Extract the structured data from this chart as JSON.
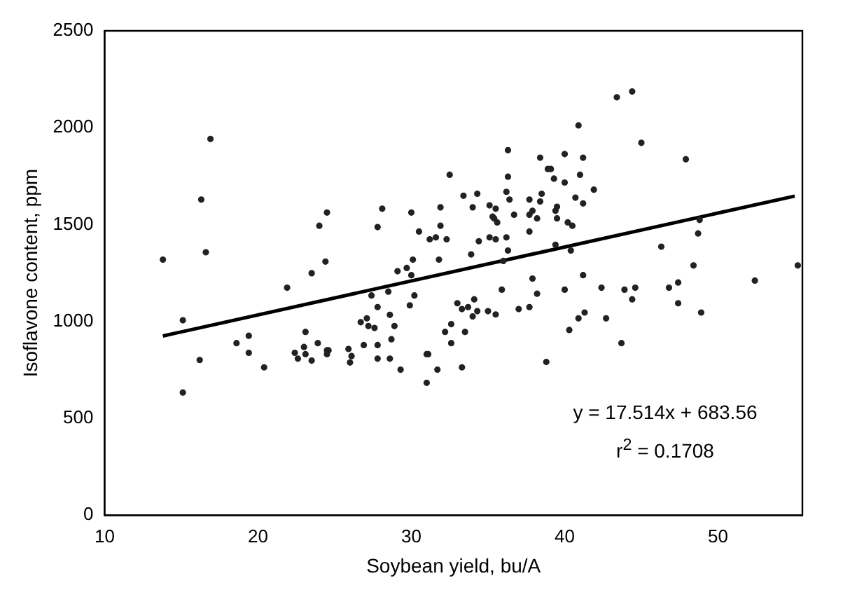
{
  "chart_data": {
    "type": "scatter",
    "xlabel": "Soybean yield, bu/A",
    "ylabel": "Isoflavone content, ppm",
    "xlim": [
      10,
      55.5
    ],
    "xticks": [
      10,
      20,
      30,
      40,
      50
    ],
    "ylim": [
      0,
      2500
    ],
    "yticks": [
      0,
      500,
      1000,
      1500,
      2000,
      2500
    ],
    "grid": false,
    "legend": false,
    "marker": "circle",
    "annotations": [
      "y = 17.514x + 683.56",
      "r$^{2}$ = 0.1708"
    ],
    "series": [
      {
        "type": "scatter",
        "color": "#222222",
        "x": [
          13.8,
          16.9,
          16.3,
          16.6,
          24.0,
          24.5,
          24.4,
          23.5,
          21.9,
          27.8,
          28.1,
          30.0,
          29.1,
          29.7,
          30.1,
          30.0,
          27.4,
          28.5,
          30.2,
          15.1,
          15.1,
          16.2,
          18.6,
          19.4,
          19.4,
          20.4,
          22.4,
          22.6,
          23.0,
          23.1,
          23.1,
          23.5,
          23.9,
          24.5,
          24.6,
          24.5,
          25.9,
          26.1,
          26.0,
          26.7,
          27.1,
          27.2,
          27.6,
          27.8,
          27.8,
          27.8,
          26.9,
          28.6,
          28.9,
          28.7,
          28.6,
          29.3,
          29.9,
          37.9,
          40.0,
          42.4,
          43.9,
          44.6,
          44.4,
          46.8,
          47.4,
          47.4,
          48.9,
          52.4,
          42.7,
          41.3,
          40.9,
          40.3,
          43.7,
          38.8,
          38.2,
          37.7,
          37.0,
          35.9,
          35.5,
          35.0,
          34.1,
          34.3,
          34.0,
          33.7,
          33.3,
          33.0,
          33.5,
          33.3,
          32.6,
          32.6,
          32.2,
          31.7,
          31.0,
          31.1,
          31.0,
          43.4,
          44.4,
          45.0,
          47.9,
          40.9,
          36.3,
          38.4,
          40.0,
          41.2,
          38.9,
          39.1,
          36.3,
          32.5,
          39.3,
          40.0,
          41.0,
          41.9,
          36.2,
          36.4,
          38.5,
          38.4,
          37.7,
          37.7,
          37.9,
          38.2,
          36.7,
          35.5,
          35.3,
          35.4,
          35.6,
          35.1,
          34.3,
          33.4,
          34.0,
          31.9,
          39.5,
          39.4,
          39.5,
          40.2,
          40.5,
          40.7,
          41.2,
          37.7,
          31.9,
          30.5,
          31.2,
          31.6,
          32.3,
          34.4,
          35.1,
          35.5,
          36.2,
          33.9,
          36.3,
          31.8,
          39.4,
          40.4,
          46.3,
          48.7,
          48.8,
          48.4,
          55.2,
          36.0,
          41.2
        ],
        "values": [
          1319,
          1942,
          1629,
          1357,
          1494,
          1562,
          1309,
          1249,
          1174,
          1487,
          1582,
          1562,
          1259,
          1276,
          1319,
          1239,
          1134,
          1154,
          1134,
          1006,
          633,
          801,
          888,
          926,
          838,
          763,
          838,
          808,
          868,
          946,
          831,
          798,
          888,
          851,
          851,
          831,
          858,
          821,
          788,
          996,
          1016,
          976,
          966,
          1074,
          878,
          808,
          878,
          1034,
          976,
          908,
          808,
          751,
          1083,
          1221,
          1164,
          1174,
          1164,
          1174,
          1114,
          1174,
          1201,
          1094,
          1046,
          1211,
          1016,
          1046,
          1016,
          956,
          888,
          791,
          1143,
          1074,
          1064,
          1164,
          1036,
          1053,
          1114,
          1053,
          1026,
          1074,
          1064,
          1094,
          946,
          763,
          986,
          888,
          946,
          751,
          831,
          831,
          683,
          2157,
          2187,
          1922,
          1837,
          2012,
          1884,
          1845,
          1864,
          1845,
          1787,
          1787,
          1747,
          1757,
          1737,
          1717,
          1757,
          1680,
          1669,
          1629,
          1659,
          1619,
          1629,
          1551,
          1571,
          1532,
          1551,
          1582,
          1541,
          1532,
          1511,
          1599,
          1659,
          1649,
          1589,
          1589,
          1592,
          1571,
          1532,
          1511,
          1494,
          1639,
          1609,
          1464,
          1494,
          1464,
          1424,
          1434,
          1424,
          1414,
          1434,
          1424,
          1434,
          1346,
          1366,
          1319,
          1396,
          1366,
          1386,
          1454,
          1524,
          1289,
          1289,
          1312,
          1239
        ]
      },
      {
        "type": "line",
        "color": "#000000",
        "marker": "none",
        "x": [
          13.8,
          55
        ],
        "values": [
          925,
          1647
        ]
      }
    ]
  }
}
